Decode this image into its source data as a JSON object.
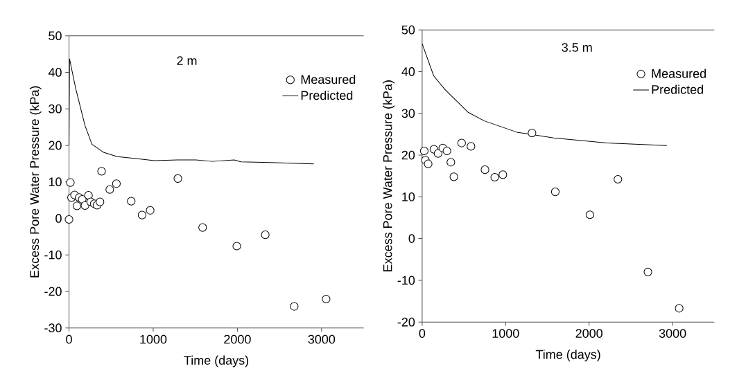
{
  "chart_data": [
    {
      "type": "scatter",
      "annotations": [
        "2 m"
      ],
      "xlabel": "Time (days)",
      "ylabel": "Excess Pore Water Pressure (kPa)",
      "xlim": [
        0,
        3500
      ],
      "ylim": [
        -30,
        50
      ],
      "xticks": [
        0,
        1000,
        2000,
        3000
      ],
      "yticks": [
        -30,
        -20,
        -10,
        0,
        10,
        20,
        30,
        40,
        50
      ],
      "legend": "top right",
      "series": [
        {
          "name": "Measured",
          "type": "scatter",
          "marker": "circle",
          "color": "#000000",
          "x": [
            0,
            16,
            30,
            66,
            121,
            94,
            157,
            190,
            231,
            258,
            300,
            333,
            368,
            387,
            484,
            563,
            739,
            868,
            964,
            1293,
            1587,
            1993,
            2331,
            2675,
            3054
          ],
          "values": [
            -0.3,
            9.8,
            5.7,
            6.4,
            5.7,
            3.4,
            5.2,
            3.5,
            6.3,
            4.5,
            4.0,
            3.6,
            4.5,
            12.9,
            7.9,
            9.5,
            4.7,
            0.9,
            2.2,
            10.9,
            -2.5,
            -7.6,
            -4.5,
            -24.1,
            -22.1
          ]
        },
        {
          "name": "Predicted",
          "type": "line",
          "color": "#000000",
          "x": [
            0,
            6,
            80,
            190,
            272,
            409,
            574,
            794,
            1013,
            1288,
            1508,
            1700,
            1961,
            2043,
            2386,
            2908
          ],
          "values": [
            20,
            43.7,
            35.5,
            25.4,
            20.3,
            18.1,
            16.9,
            16.4,
            15.8,
            16.0,
            16.0,
            15.6,
            16.0,
            15.5,
            15.3,
            14.9
          ]
        }
      ]
    },
    {
      "type": "scatter",
      "annotations": [
        "3.5 m"
      ],
      "xlabel": "Time (days)",
      "ylabel": "Excess Pore Water Pressure (kPa)",
      "xlim": [
        0,
        3500
      ],
      "ylim": [
        -20,
        50
      ],
      "xticks": [
        0,
        1000,
        2000,
        3000
      ],
      "yticks": [
        -20,
        -10,
        0,
        10,
        20,
        30,
        40,
        50
      ],
      "legend": "top right",
      "series": [
        {
          "name": "Measured",
          "type": "scatter",
          "marker": "circle",
          "color": "#000000",
          "x": [
            25,
            39,
            72,
            141,
            191,
            247,
            297,
            344,
            380,
            473,
            585,
            753,
            870,
            967,
            1316,
            1595,
            2010,
            2345,
            2705,
            3079
          ],
          "values": [
            21.0,
            18.8,
            17.9,
            21.4,
            20.4,
            21.7,
            21.0,
            18.3,
            14.8,
            22.9,
            22.1,
            16.5,
            14.7,
            15.3,
            25.3,
            11.2,
            5.7,
            14.2,
            -8.0,
            -16.7
          ]
        },
        {
          "name": "Predicted",
          "type": "line",
          "color": "#000000",
          "x": [
            0,
            138,
            274,
            554,
            745,
            1133,
            1576,
            2213,
            2932
          ],
          "values": [
            46.7,
            39.0,
            35.7,
            30.2,
            28.2,
            25.5,
            24.1,
            22.9,
            22.3
          ]
        }
      ]
    }
  ]
}
